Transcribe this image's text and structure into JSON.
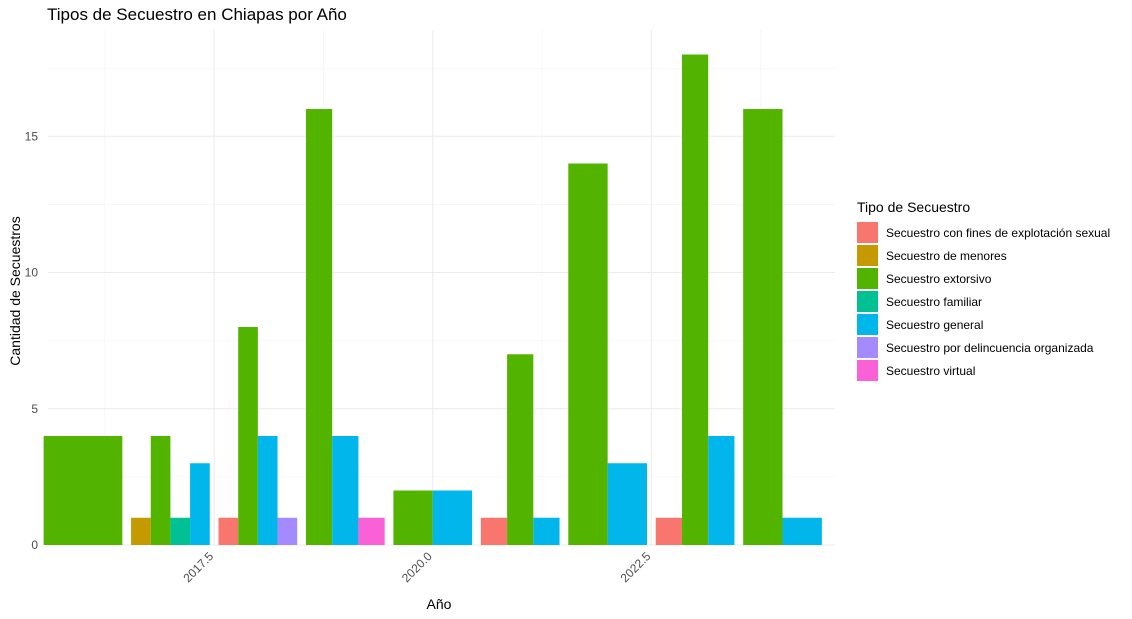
{
  "chart_data": {
    "type": "bar",
    "title": "Tipos de Secuestro en Chiapas por Año",
    "xlabel": "Año",
    "ylabel": "Cantidad de Secuestros",
    "xlim": [
      2015.6,
      2024.6
    ],
    "ylim": [
      0,
      18.9
    ],
    "x_ticks": [
      2017.5,
      2020.0,
      2022.5
    ],
    "x_tick_labels": [
      "2017.5",
      "2020.0",
      "2022.5"
    ],
    "y_ticks": [
      0,
      5,
      10,
      15
    ],
    "y_tick_labels": [
      "0",
      "5",
      "10",
      "15"
    ],
    "grid": true,
    "legend_position": "right",
    "legend_title": "Tipo de Secuestro",
    "series": [
      {
        "name": "Secuestro con fines de explotación sexual",
        "color": "#F8766D"
      },
      {
        "name": "Secuestro de menores",
        "color": "#C49A00"
      },
      {
        "name": "Secuestro extorsivo",
        "color": "#53B400"
      },
      {
        "name": "Secuestro familiar",
        "color": "#00C094"
      },
      {
        "name": "Secuestro general",
        "color": "#00B6EB"
      },
      {
        "name": "Secuestro por delincuencia organizada",
        "color": "#A58AFF"
      },
      {
        "name": "Secuestro virtual",
        "color": "#FB61D7"
      }
    ],
    "data": [
      {
        "year": 2016,
        "values": {
          "Secuestro extorsivo": 4
        }
      },
      {
        "year": 2017,
        "values": {
          "Secuestro de menores": 1,
          "Secuestro extorsivo": 4,
          "Secuestro familiar": 1,
          "Secuestro general": 3
        }
      },
      {
        "year": 2018,
        "values": {
          "Secuestro con fines de explotación sexual": 1,
          "Secuestro extorsivo": 8,
          "Secuestro general": 4,
          "Secuestro por delincuencia organizada": 1
        }
      },
      {
        "year": 2019,
        "values": {
          "Secuestro extorsivo": 16,
          "Secuestro general": 4,
          "Secuestro virtual": 1
        }
      },
      {
        "year": 2020,
        "values": {
          "Secuestro extorsivo": 2,
          "Secuestro general": 2
        }
      },
      {
        "year": 2021,
        "values": {
          "Secuestro con fines de explotación sexual": 1,
          "Secuestro extorsivo": 7,
          "Secuestro general": 1
        }
      },
      {
        "year": 2022,
        "values": {
          "Secuestro extorsivo": 14,
          "Secuestro general": 3
        }
      },
      {
        "year": 2023,
        "values": {
          "Secuestro con fines de explotación sexual": 1,
          "Secuestro extorsivo": 18,
          "Secuestro general": 4
        }
      },
      {
        "year": 2024,
        "values": {
          "Secuestro extorsivo": 16,
          "Secuestro general": 1
        }
      }
    ]
  }
}
